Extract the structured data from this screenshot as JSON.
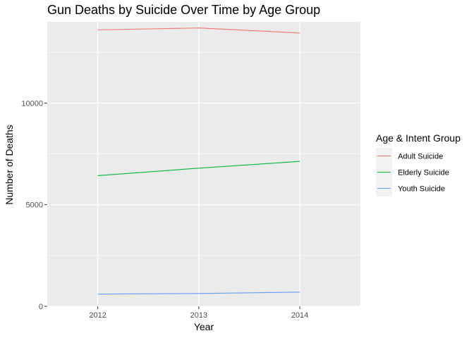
{
  "chart_data": {
    "type": "line",
    "title": "Gun Deaths by Suicide Over Time by Age Group",
    "xlabel": "Year",
    "ylabel": "Number of Deaths",
    "x": [
      2012,
      2013,
      2014
    ],
    "xlim": [
      2011.5,
      2014.6
    ],
    "ylim": [
      0,
      14000
    ],
    "x_ticks": [
      "2012",
      "2013",
      "2014"
    ],
    "y_ticks": [
      0,
      5000,
      10000
    ],
    "y_tick_labels": [
      "0",
      "5000",
      "10000"
    ],
    "grid": true,
    "legend": {
      "title": "Age & Intent Group",
      "position": "right"
    },
    "series": [
      {
        "name": "Adult Suicide",
        "color": "#F8766D",
        "values": [
          13600,
          13700,
          13450
        ]
      },
      {
        "name": "Elderly Suicide",
        "color": "#00BA38",
        "values": [
          6430,
          6800,
          7130
        ]
      },
      {
        "name": "Youth Suicide",
        "color": "#619CFF",
        "values": [
          600,
          630,
          700
        ]
      }
    ]
  }
}
